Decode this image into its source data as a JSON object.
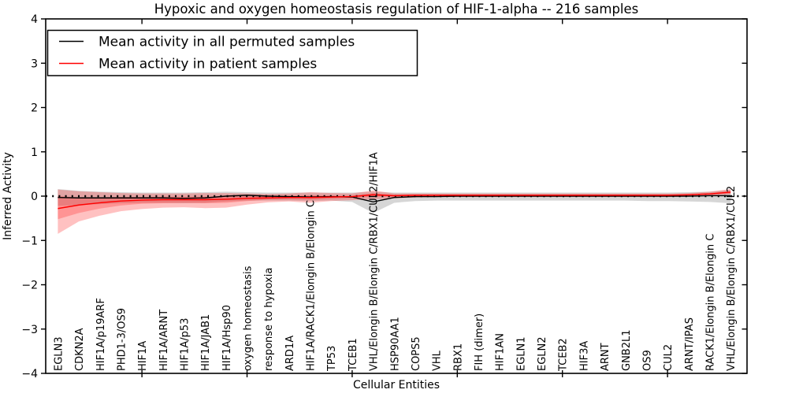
{
  "chart_data": {
    "type": "line",
    "title": "Hypoxic and oxygen homeostasis regulation of HIF-1-alpha -- 216 samples",
    "xlabel": "Cellular Entities",
    "ylabel": "Inferred Activity",
    "ylim": [
      -4,
      4
    ],
    "grid": false,
    "legend_position": "upper-left",
    "yticks": [
      {
        "v": -4,
        "label": "−4"
      },
      {
        "v": -3,
        "label": "−3"
      },
      {
        "v": -2,
        "label": "−2"
      },
      {
        "v": -1,
        "label": "−1"
      },
      {
        "v": 0,
        "label": "0"
      },
      {
        "v": 1,
        "label": "1"
      },
      {
        "v": 2,
        "label": "2"
      },
      {
        "v": 3,
        "label": "3"
      },
      {
        "v": 4,
        "label": "4"
      }
    ],
    "xtick_indices": [
      4,
      9,
      14,
      19,
      24,
      29
    ],
    "categories": [
      "EGLN3",
      "CDKN2A",
      "HIF1A/p19ARF",
      "PHD1-3/OS9",
      "HIF1A",
      "HIF1A/ARNT",
      "HIF1A/p53",
      "HIF1A/JAB1",
      "HIF1A/Hsp90",
      "oxygen homeostasis",
      "response to hypoxia",
      "ARD1A",
      "HIF1A/RACK1/Elongin B/Elongin C",
      "TP53",
      "TCEB1",
      "VHL/Elongin B/Elongin C/RBX1/CUL2/HIF1A",
      "HSP90AA1",
      "COPS5",
      "VHL",
      "RBX1",
      "FIH (dimer)",
      "HIF1AN",
      "EGLN1",
      "EGLN2",
      "TCEB2",
      "HIF3A",
      "ARNT",
      "GNB2L1",
      "OS9",
      "CUL2",
      "ARNT/IPAS",
      "RACK1/Elongin B/Elongin C",
      "VHL/Elongin B/Elongin C/RBX1/CUL2"
    ],
    "zero_reference_line": 0,
    "series": [
      {
        "key": "permuted",
        "name": "Mean activity in all permuted samples",
        "color": "#000000",
        "width": 1.4,
        "values": [
          -0.03,
          -0.04,
          -0.04,
          -0.04,
          -0.04,
          -0.04,
          -0.05,
          -0.04,
          0.0,
          0.02,
          0.0,
          -0.01,
          -0.02,
          -0.01,
          -0.02,
          -0.13,
          -0.03,
          -0.01,
          -0.01,
          0.0,
          0.0,
          0.0,
          0.0,
          0.0,
          0.0,
          0.0,
          0.0,
          0.0,
          0.0,
          0.0,
          0.0,
          0.01,
          0.01
        ],
        "bands": [
          {
            "label": "permuted-std-band",
            "color": "#999999",
            "opacity": 0.4,
            "upper": [
              0.16,
              0.12,
              0.1,
              0.09,
              0.08,
              0.08,
              0.08,
              0.09,
              0.1,
              0.09,
              0.08,
              0.08,
              0.08,
              0.08,
              0.08,
              0.1,
              0.08,
              0.08,
              0.08,
              0.08,
              0.08,
              0.08,
              0.08,
              0.08,
              0.08,
              0.08,
              0.08,
              0.08,
              0.08,
              0.08,
              0.09,
              0.1,
              0.14
            ],
            "lower": [
              -0.22,
              -0.2,
              -0.18,
              -0.16,
              -0.15,
              -0.15,
              -0.16,
              -0.15,
              -0.12,
              -0.1,
              -0.1,
              -0.1,
              -0.11,
              -0.1,
              -0.13,
              -0.38,
              -0.15,
              -0.11,
              -0.1,
              -0.1,
              -0.1,
              -0.1,
              -0.1,
              -0.1,
              -0.1,
              -0.1,
              -0.1,
              -0.1,
              -0.11,
              -0.11,
              -0.12,
              -0.13,
              -0.16
            ]
          }
        ]
      },
      {
        "key": "patient",
        "name": "Mean activity in patient samples",
        "color": "#ff0000",
        "width": 1.5,
        "values": [
          -0.28,
          -0.2,
          -0.15,
          -0.11,
          -0.09,
          -0.08,
          -0.08,
          -0.08,
          -0.07,
          -0.05,
          -0.04,
          -0.03,
          -0.03,
          -0.02,
          -0.01,
          0.03,
          0.01,
          0.02,
          0.02,
          0.02,
          0.02,
          0.02,
          0.02,
          0.02,
          0.02,
          0.02,
          0.02,
          0.02,
          0.02,
          0.02,
          0.03,
          0.05,
          0.09
        ],
        "bands": [
          {
            "label": "patient-outer-band",
            "color": "#ff2222",
            "opacity": 0.28,
            "upper": [
              0.15,
              0.11,
              0.09,
              0.07,
              0.06,
              0.06,
              0.06,
              0.07,
              0.07,
              0.06,
              0.05,
              0.06,
              0.09,
              0.07,
              0.06,
              0.13,
              0.06,
              0.06,
              0.06,
              0.06,
              0.06,
              0.06,
              0.06,
              0.06,
              0.06,
              0.06,
              0.06,
              0.06,
              0.06,
              0.06,
              0.07,
              0.1,
              0.16
            ],
            "lower": [
              -0.85,
              -0.57,
              -0.44,
              -0.34,
              -0.29,
              -0.26,
              -0.25,
              -0.27,
              -0.26,
              -0.19,
              -0.14,
              -0.12,
              -0.15,
              -0.11,
              -0.09,
              -0.07,
              -0.05,
              -0.03,
              -0.02,
              -0.02,
              -0.02,
              -0.02,
              -0.02,
              -0.02,
              -0.02,
              -0.02,
              -0.02,
              -0.02,
              -0.02,
              -0.02,
              -0.01,
              0.01,
              0.04
            ]
          },
          {
            "label": "patient-inner-band",
            "color": "#ff2222",
            "opacity": 0.28,
            "upper": [
              0.0,
              -0.03,
              -0.03,
              -0.02,
              -0.02,
              -0.01,
              -0.01,
              -0.01,
              -0.01,
              0.0,
              0.0,
              0.01,
              0.02,
              0.01,
              0.01,
              0.07,
              0.03,
              0.03,
              0.03,
              0.03,
              0.03,
              0.03,
              0.03,
              0.03,
              0.03,
              0.03,
              0.03,
              0.03,
              0.03,
              0.03,
              0.04,
              0.07,
              0.12
            ],
            "lower": [
              -0.52,
              -0.38,
              -0.28,
              -0.21,
              -0.17,
              -0.16,
              -0.15,
              -0.16,
              -0.15,
              -0.11,
              -0.08,
              -0.07,
              -0.08,
              -0.06,
              -0.04,
              -0.01,
              -0.01,
              0.0,
              0.01,
              0.01,
              0.01,
              0.01,
              0.01,
              0.01,
              0.01,
              0.01,
              0.01,
              0.01,
              0.01,
              0.01,
              0.02,
              0.03,
              0.06
            ]
          }
        ]
      }
    ]
  },
  "legend": {
    "items": [
      {
        "label": "Mean activity in all permuted samples",
        "color": "#000000"
      },
      {
        "label": "Mean activity in patient samples",
        "color": "#ff0000"
      }
    ]
  }
}
